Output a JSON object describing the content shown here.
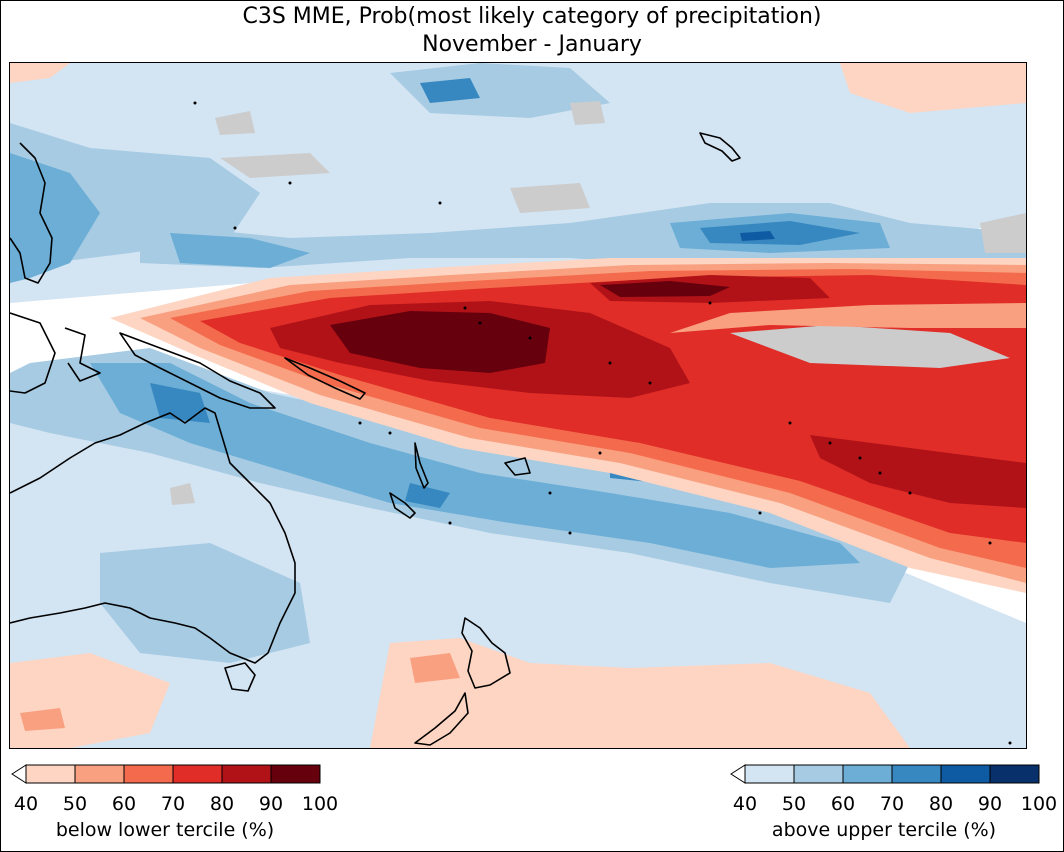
{
  "title": {
    "line1": "C3S MME, Prob(most likely category of precipitation)",
    "line2": "November - January"
  },
  "map": {
    "region": "Western and central tropical Pacific, Australia, New Zealand",
    "land_outline_color": "#000000",
    "ocean_base_color": "#ffffff",
    "neutral_color": "#cccccc"
  },
  "colorbars": [
    {
      "label": "below lower tercile (%)",
      "ticks": [
        "40",
        "50",
        "60",
        "70",
        "80",
        "90",
        "100"
      ],
      "colors": [
        "#fdd5c2",
        "#f9a080",
        "#f36b4c",
        "#e02d27",
        "#b11218",
        "#67000d"
      ],
      "extend_color": "#ffffff"
    },
    {
      "label": "above upper tercile (%)",
      "ticks": [
        "40",
        "50",
        "60",
        "70",
        "80",
        "90",
        "100"
      ],
      "colors": [
        "#d3e4f3",
        "#a6cbe3",
        "#6caed6",
        "#3787c0",
        "#0f5ba3",
        "#08306b"
      ],
      "extend_color": "#ffffff"
    }
  ]
}
